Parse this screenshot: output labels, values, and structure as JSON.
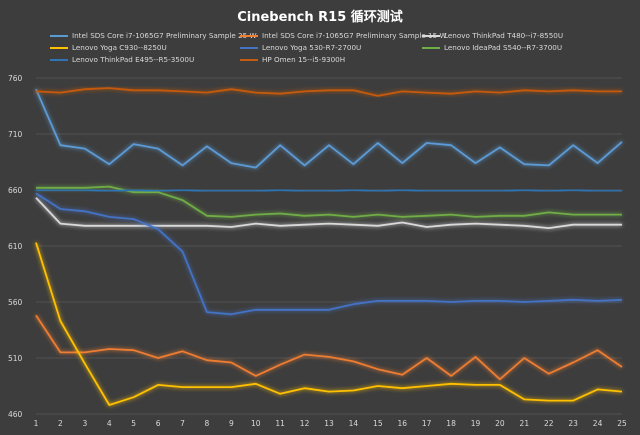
{
  "chart_data": {
    "type": "line",
    "title": "Cinebench R15 循环测试",
    "x": [
      1,
      2,
      3,
      4,
      5,
      6,
      7,
      8,
      9,
      10,
      11,
      12,
      13,
      14,
      15,
      16,
      17,
      18,
      19,
      20,
      21,
      22,
      23,
      24,
      25
    ],
    "ylim": [
      460,
      760
    ],
    "yticks": [
      460,
      510,
      560,
      610,
      660,
      710,
      760
    ],
    "grid": true,
    "legend_position": "top",
    "series": [
      {
        "name": "Intel SDS Core i7-1065G7 Preliminary Sample 25 W",
        "color": "#5b9bd5",
        "values": [
          750,
          700,
          697,
          683,
          701,
          697,
          682,
          699,
          684,
          680,
          700,
          682,
          700,
          683,
          702,
          684,
          702,
          700,
          684,
          698,
          683,
          682,
          700,
          684,
          703
        ]
      },
      {
        "name": "Intel SDS Core i7-1065G7 Preliminary Sample 15 W",
        "color": "#ed7d31",
        "values": [
          548,
          515,
          515,
          518,
          517,
          510,
          516,
          508,
          506,
          494,
          504,
          513,
          511,
          507,
          500,
          495,
          510,
          494,
          511,
          491,
          510,
          496,
          506,
          517,
          502
        ]
      },
      {
        "name": "Lenovo ThinkPad T480--i7-8550U",
        "color": "#d9d9d9",
        "values": [
          653,
          630,
          628,
          628,
          628,
          628,
          628,
          628,
          627,
          630,
          628,
          629,
          630,
          629,
          628,
          631,
          627,
          629,
          630,
          629,
          628,
          626,
          629,
          629,
          629
        ]
      },
      {
        "name": "Lenovo Yoga C930--8250U",
        "color": "#ffc000",
        "values": [
          613,
          543,
          505,
          468,
          475,
          486,
          484,
          484,
          484,
          487,
          478,
          483,
          480,
          481,
          485,
          483,
          485,
          487,
          486,
          486,
          473,
          472,
          472,
          482,
          480
        ]
      },
      {
        "name": "Lenovo Yoga 530-R7-2700U",
        "color": "#4472c4",
        "values": [
          657,
          643,
          641,
          636,
          634,
          625,
          605,
          551,
          549,
          553,
          553,
          553,
          553,
          558,
          561,
          561,
          561,
          560,
          561,
          561,
          560,
          561,
          562,
          561,
          562
        ]
      },
      {
        "name": "Lenovo IdeaPad S540--R7-3700U",
        "color": "#70ad47",
        "values": [
          662,
          662,
          662,
          663,
          658,
          658,
          651,
          637,
          636,
          638,
          639,
          637,
          638,
          636,
          638,
          636,
          637,
          638,
          636,
          637,
          637,
          640,
          638,
          638,
          638
        ]
      },
      {
        "name": "Lenovo ThinkPad E495--R5-3500U",
        "color": "#2e75b6",
        "values": [
          660,
          660,
          660,
          659,
          660,
          659,
          660,
          659,
          659,
          659,
          660,
          659,
          659,
          660,
          659,
          660,
          659,
          659,
          659,
          659,
          660,
          659,
          660,
          659,
          659
        ]
      },
      {
        "name": "HP Omen 15--i5-9300H",
        "color": "#c55a11",
        "values": [
          748,
          747,
          750,
          751,
          749,
          749,
          748,
          747,
          750,
          747,
          746,
          748,
          749,
          749,
          744,
          748,
          747,
          746,
          748,
          747,
          749,
          748,
          749,
          748,
          748
        ]
      }
    ]
  }
}
